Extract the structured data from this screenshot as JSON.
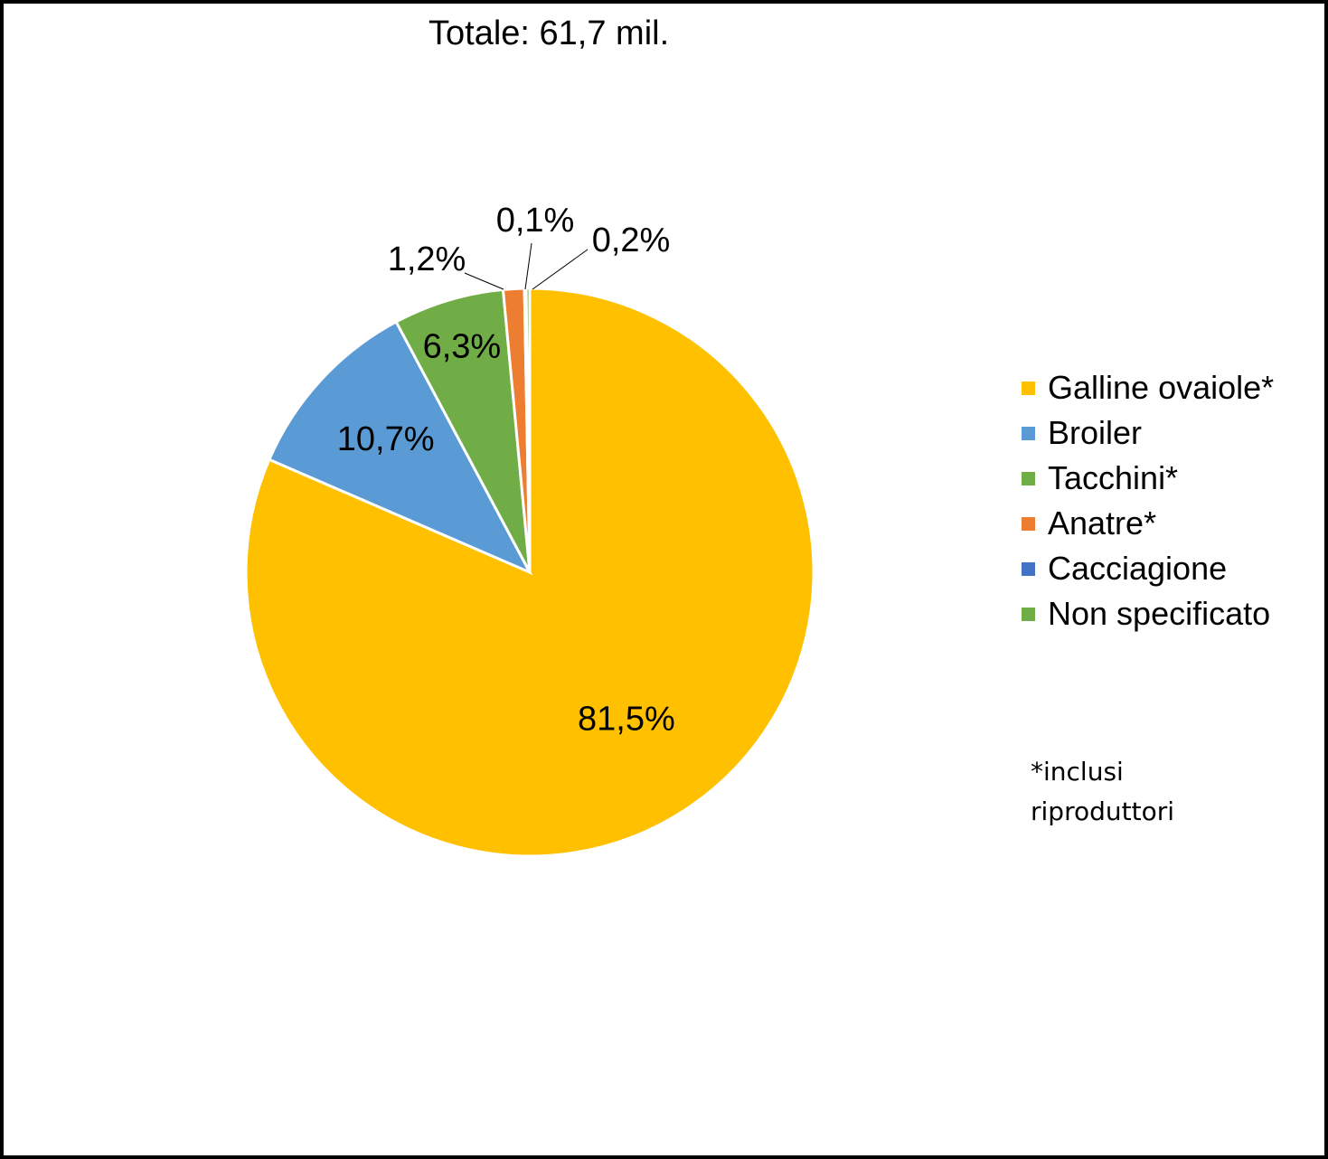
{
  "chart_data": {
    "type": "pie",
    "title": "Totale: 61,7 mil.",
    "categories": [
      "Galline ovaiole*",
      "Broiler",
      "Tacchini*",
      "Anatre*",
      "Cacciagione",
      "Non specificato"
    ],
    "values": [
      81.5,
      10.7,
      6.3,
      1.2,
      0.1,
      0.2
    ],
    "labels": [
      "81,5%",
      "10,7%",
      "6,3%",
      "1,2%",
      "0,1%",
      "0,2%"
    ],
    "colors": [
      "#FFC000",
      "#5B9BD5",
      "#70AD47",
      "#ED7D31",
      "#4472C4",
      "#70AD47"
    ],
    "legend_position": "right",
    "note": "*inclusi riproduttori"
  }
}
